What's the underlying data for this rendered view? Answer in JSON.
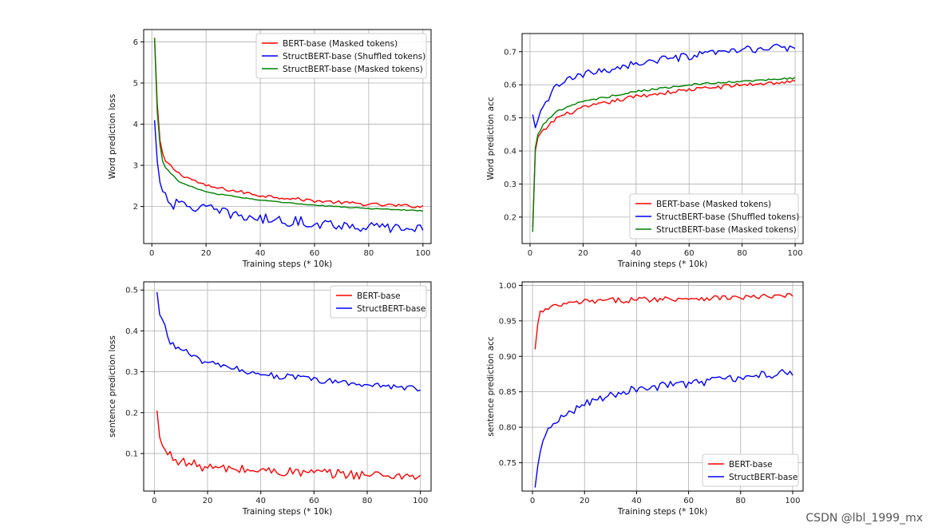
{
  "watermark": "CSDN @lbl_1999_mx",
  "colors": {
    "red": "#ff0000",
    "blue": "#0000ff",
    "green": "#008000",
    "grid": "#b0b0b0"
  },
  "chart_data": [
    {
      "id": "word-loss",
      "type": "line",
      "xlabel": "Training steps (* 10k)",
      "ylabel": "Word prediction loss",
      "xlim": [
        -3,
        103
      ],
      "ylim": [
        1.1,
        6.3
      ],
      "xticks": [
        0,
        20,
        40,
        60,
        80,
        100
      ],
      "yticks": [
        2,
        3,
        4,
        5,
        6
      ],
      "tick_decimals": 0,
      "grid": true,
      "legend_position": "top-right",
      "series": [
        {
          "name": "BERT-base (Masked tokens)",
          "color": "#ff0000",
          "start": 6.1,
          "end": 2.0,
          "k": 0.9,
          "noise": 0.04,
          "knots": [
            [
              1,
              6.1
            ],
            [
              2,
              4.5
            ],
            [
              3,
              3.6
            ],
            [
              4,
              3.25
            ],
            [
              5,
              3.1
            ],
            [
              10,
              2.8
            ],
            [
              20,
              2.5
            ],
            [
              40,
              2.27
            ],
            [
              60,
              2.14
            ],
            [
              80,
              2.05
            ],
            [
              100,
              2.0
            ]
          ]
        },
        {
          "name": "StructBERT-base (Shuffled tokens)",
          "color": "#0000ff",
          "noise": 0.13,
          "knots": [
            [
              1,
              4.1
            ],
            [
              2,
              3.1
            ],
            [
              3,
              2.55
            ],
            [
              5,
              2.35
            ],
            [
              7,
              2.05
            ],
            [
              10,
              2.05
            ],
            [
              20,
              1.95
            ],
            [
              30,
              1.8
            ],
            [
              40,
              1.7
            ],
            [
              60,
              1.6
            ],
            [
              80,
              1.5
            ],
            [
              100,
              1.45
            ]
          ]
        },
        {
          "name": "StructBERT-base (Masked tokens)",
          "color": "#008000",
          "noise": 0.012,
          "knots": [
            [
              1,
              6.1
            ],
            [
              2,
              4.3
            ],
            [
              3,
              3.5
            ],
            [
              4,
              3.1
            ],
            [
              5,
              2.95
            ],
            [
              10,
              2.6
            ],
            [
              20,
              2.35
            ],
            [
              40,
              2.15
            ],
            [
              60,
              2.03
            ],
            [
              80,
              1.95
            ],
            [
              100,
              1.9
            ]
          ]
        }
      ]
    },
    {
      "id": "word-acc",
      "type": "line",
      "xlabel": "Training steps (* 10k)",
      "ylabel": "Word prediction acc",
      "xlim": [
        -3,
        103
      ],
      "ylim": [
        0.12,
        0.755
      ],
      "xticks": [
        0,
        20,
        40,
        60,
        80,
        100
      ],
      "yticks": [
        0.2,
        0.3,
        0.4,
        0.5,
        0.6,
        0.7
      ],
      "tick_decimals": 1,
      "grid": true,
      "legend_position": "bottom-right",
      "series": [
        {
          "name": "BERT-base (Masked tokens)",
          "color": "#ff0000",
          "noise": 0.006,
          "knots": [
            [
              1,
              0.17
            ],
            [
              2,
              0.4
            ],
            [
              3,
              0.44
            ],
            [
              5,
              0.46
            ],
            [
              10,
              0.5
            ],
            [
              20,
              0.53
            ],
            [
              40,
              0.565
            ],
            [
              60,
              0.585
            ],
            [
              80,
              0.6
            ],
            [
              100,
              0.61
            ]
          ]
        },
        {
          "name": "StructBERT-base (Shuffled tokens)",
          "color": "#0000ff",
          "noise": 0.012,
          "knots": [
            [
              1,
              0.51
            ],
            [
              2,
              0.47
            ],
            [
              4,
              0.51
            ],
            [
              7,
              0.56
            ],
            [
              10,
              0.6
            ],
            [
              20,
              0.63
            ],
            [
              40,
              0.665
            ],
            [
              60,
              0.685
            ],
            [
              80,
              0.705
            ],
            [
              100,
              0.715
            ]
          ]
        },
        {
          "name": "StructBERT-base (Masked tokens)",
          "color": "#008000",
          "noise": 0.003,
          "knots": [
            [
              1,
              0.155
            ],
            [
              2,
              0.41
            ],
            [
              3,
              0.45
            ],
            [
              5,
              0.48
            ],
            [
              10,
              0.52
            ],
            [
              20,
              0.55
            ],
            [
              40,
              0.58
            ],
            [
              60,
              0.6
            ],
            [
              80,
              0.61
            ],
            [
              100,
              0.62
            ]
          ]
        }
      ]
    },
    {
      "id": "sent-loss",
      "type": "line",
      "xlabel": "Training steps (* 10k)",
      "ylabel": "sentence prediction loss",
      "xlim": [
        -4,
        104
      ],
      "ylim": [
        0.008,
        0.52
      ],
      "xticks": [
        0,
        20,
        40,
        60,
        80,
        100
      ],
      "yticks": [
        0.1,
        0.2,
        0.3,
        0.4,
        0.5
      ],
      "tick_decimals": 1,
      "grid": true,
      "legend_position": "top-right",
      "series": [
        {
          "name": "BERT-base",
          "color": "#ff0000",
          "noise": 0.012,
          "knots": [
            [
              1,
              0.205
            ],
            [
              2,
              0.14
            ],
            [
              3,
              0.115
            ],
            [
              5,
              0.1
            ],
            [
              10,
              0.08
            ],
            [
              20,
              0.065
            ],
            [
              40,
              0.058
            ],
            [
              60,
              0.052
            ],
            [
              80,
              0.048
            ],
            [
              100,
              0.045
            ]
          ]
        },
        {
          "name": "StructBERT-base",
          "color": "#0000ff",
          "noise": 0.008,
          "knots": [
            [
              1,
              0.495
            ],
            [
              2,
              0.44
            ],
            [
              4,
              0.41
            ],
            [
              6,
              0.37
            ],
            [
              10,
              0.355
            ],
            [
              20,
              0.32
            ],
            [
              40,
              0.295
            ],
            [
              60,
              0.28
            ],
            [
              80,
              0.268
            ],
            [
              100,
              0.26
            ]
          ]
        }
      ]
    },
    {
      "id": "sent-acc",
      "type": "line",
      "xlabel": "Training steps (* 10k)",
      "ylabel": "sentence prediction acc",
      "xlim": [
        -4,
        104
      ],
      "ylim": [
        0.71,
        1.005
      ],
      "xticks": [
        0,
        20,
        40,
        60,
        80,
        100
      ],
      "yticks": [
        0.75,
        0.8,
        0.85,
        0.9,
        0.95,
        1.0
      ],
      "tick_decimals": 2,
      "grid": true,
      "legend_position": "bottom-right",
      "series": [
        {
          "name": "BERT-base",
          "color": "#ff0000",
          "noise": 0.004,
          "knots": [
            [
              1,
              0.91
            ],
            [
              2,
              0.945
            ],
            [
              3,
              0.962
            ],
            [
              5,
              0.965
            ],
            [
              10,
              0.972
            ],
            [
              20,
              0.977
            ],
            [
              40,
              0.98
            ],
            [
              60,
              0.982
            ],
            [
              80,
              0.983
            ],
            [
              100,
              0.985
            ]
          ]
        },
        {
          "name": "StructBERT-base",
          "color": "#0000ff",
          "noise": 0.006,
          "knots": [
            [
              1,
              0.715
            ],
            [
              2,
              0.745
            ],
            [
              4,
              0.78
            ],
            [
              7,
              0.8
            ],
            [
              10,
              0.81
            ],
            [
              20,
              0.835
            ],
            [
              40,
              0.855
            ],
            [
              60,
              0.862
            ],
            [
              80,
              0.87
            ],
            [
              100,
              0.878
            ]
          ]
        }
      ]
    }
  ]
}
